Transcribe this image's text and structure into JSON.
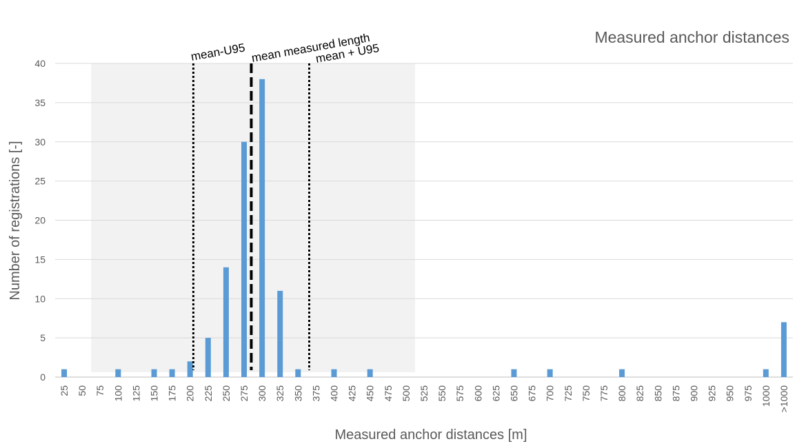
{
  "chart_data": {
    "type": "bar",
    "title": "Measured anchor distances",
    "xlabel": "Measured anchor distances [m]",
    "ylabel": "Number of registrations [-]",
    "ylim": [
      0,
      40
    ],
    "yticks": [
      0,
      5,
      10,
      15,
      20,
      25,
      30,
      35,
      40
    ],
    "grid": true,
    "legend": "none",
    "categories": [
      "25",
      "50",
      "75",
      "100",
      "125",
      "150",
      "175",
      "200",
      "225",
      "250",
      "275",
      "300",
      "325",
      "350",
      "375",
      "400",
      "425",
      "450",
      "475",
      "500",
      "525",
      "550",
      "575",
      "600",
      "625",
      "650",
      "675",
      "700",
      "725",
      "750",
      "775",
      "800",
      "825",
      "850",
      "875",
      "900",
      "925",
      "950",
      "975",
      "1000",
      ">1000"
    ],
    "values": [
      1,
      0,
      0,
      1,
      0,
      1,
      1,
      2,
      5,
      14,
      30,
      38,
      11,
      1,
      0,
      1,
      0,
      1,
      0,
      0,
      0,
      0,
      0,
      0,
      0,
      1,
      0,
      1,
      0,
      0,
      0,
      1,
      0,
      0,
      0,
      0,
      0,
      0,
      0,
      1,
      7
    ],
    "bar_color": "#5B9BD5",
    "shaded_region": {
      "x_from": 62.5,
      "x_to": 512.5,
      "y_to": 40,
      "color": "#F2F2F2"
    },
    "reference_lines": [
      {
        "label": "mean-U95",
        "x": 204.5,
        "style": "dotted"
      },
      {
        "label": "mean measured length",
        "x": 285,
        "style": "dashed"
      },
      {
        "label": "mean + U95",
        "x": 365.5,
        "style": "dotted"
      }
    ]
  }
}
